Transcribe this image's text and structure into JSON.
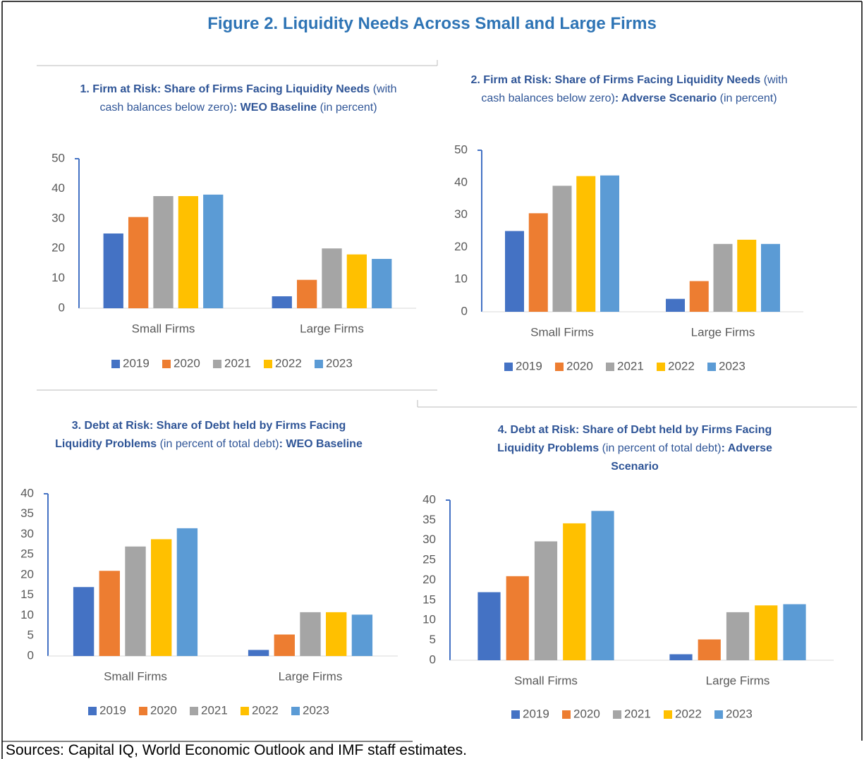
{
  "title": "Figure 2. Liquidity Needs Across Small and Large Firms",
  "source": "Sources: Capital IQ, World Economic Outlook and IMF staff estimates.",
  "chart_data": [
    {
      "type": "bar",
      "title": [
        {
          "text": "1. Firm at Risk: Share of Firms Facing Liquidity Needs",
          "bold": true
        },
        {
          "text": " (with cash balances below zero)",
          "bold": false
        },
        {
          "text": ": WEO Baseline",
          "bold": true
        },
        {
          "text": " (in percent)",
          "bold": false
        }
      ],
      "categories": [
        "Small Firms",
        "Large Firms"
      ],
      "series": [
        {
          "name": "2019",
          "color": "#4472c4",
          "values": [
            25,
            4
          ]
        },
        {
          "name": "2020",
          "color": "#ed7d31",
          "values": [
            30.5,
            9.5
          ]
        },
        {
          "name": "2021",
          "color": "#a5a5a5",
          "values": [
            37.5,
            20
          ]
        },
        {
          "name": "2022",
          "color": "#ffc000",
          "values": [
            37.5,
            18
          ]
        },
        {
          "name": "2023",
          "color": "#5b9bd5",
          "values": [
            38,
            16.5
          ]
        }
      ],
      "ylim": [
        0,
        50
      ],
      "yticks": [
        0,
        10,
        20,
        30,
        40,
        50
      ],
      "legend": "bottom"
    },
    {
      "type": "bar",
      "title": [
        {
          "text": "2. Firm at Risk: Share of Firms Facing Liquidity Needs",
          "bold": true
        },
        {
          "text": " (with cash balances below zero)",
          "bold": false
        },
        {
          "text": ": Adverse Scenario",
          "bold": true
        },
        {
          "text": " (in percent)",
          "bold": false
        }
      ],
      "categories": [
        "Small Firms",
        "Large Firms"
      ],
      "series": [
        {
          "name": "2019",
          "color": "#4472c4",
          "values": [
            25,
            4
          ]
        },
        {
          "name": "2020",
          "color": "#ed7d31",
          "values": [
            30.5,
            9.5
          ]
        },
        {
          "name": "2021",
          "color": "#a5a5a5",
          "values": [
            39,
            21
          ]
        },
        {
          "name": "2022",
          "color": "#ffc000",
          "values": [
            42,
            22.3
          ]
        },
        {
          "name": "2023",
          "color": "#5b9bd5",
          "values": [
            42.2,
            21
          ]
        }
      ],
      "ylim": [
        0,
        50
      ],
      "yticks": [
        0,
        10,
        20,
        30,
        40,
        50
      ],
      "legend": "bottom"
    },
    {
      "type": "bar",
      "title": [
        {
          "text": "3. Debt at Risk: Share of Debt held by Firms Facing Liquidity Problems",
          "bold": true
        },
        {
          "text": " (in percent of total debt)",
          "bold": false
        },
        {
          "text": ": WEO Baseline",
          "bold": true
        }
      ],
      "categories": [
        "Small Firms",
        "Large Firms"
      ],
      "series": [
        {
          "name": "2019",
          "color": "#4472c4",
          "values": [
            17,
            1.5
          ]
        },
        {
          "name": "2020",
          "color": "#ed7d31",
          "values": [
            21,
            5.3
          ]
        },
        {
          "name": "2021",
          "color": "#a5a5a5",
          "values": [
            27,
            10.8
          ]
        },
        {
          "name": "2022",
          "color": "#ffc000",
          "values": [
            28.8,
            10.8
          ]
        },
        {
          "name": "2023",
          "color": "#5b9bd5",
          "values": [
            31.5,
            10.2
          ]
        }
      ],
      "ylim": [
        0,
        40
      ],
      "yticks": [
        0,
        5,
        10,
        15,
        20,
        25,
        30,
        35,
        40
      ],
      "legend": "bottom"
    },
    {
      "type": "bar",
      "title": [
        {
          "text": "4. Debt at Risk: Share of Debt held by Firms Facing Liquidity Problems",
          "bold": true
        },
        {
          "text": " (in percent of total debt)",
          "bold": false
        },
        {
          "text": ": Adverse Scenario",
          "bold": true
        }
      ],
      "categories": [
        "Small Firms",
        "Large Firms"
      ],
      "series": [
        {
          "name": "2019",
          "color": "#4472c4",
          "values": [
            17,
            1.5
          ]
        },
        {
          "name": "2020",
          "color": "#ed7d31",
          "values": [
            21,
            5.2
          ]
        },
        {
          "name": "2021",
          "color": "#a5a5a5",
          "values": [
            29.7,
            12
          ]
        },
        {
          "name": "2022",
          "color": "#ffc000",
          "values": [
            34.2,
            13.7
          ]
        },
        {
          "name": "2023",
          "color": "#5b9bd5",
          "values": [
            37.3,
            14
          ]
        }
      ],
      "ylim": [
        0,
        40
      ],
      "yticks": [
        0,
        5,
        10,
        15,
        20,
        25,
        30,
        35,
        40
      ],
      "legend": "bottom"
    }
  ]
}
